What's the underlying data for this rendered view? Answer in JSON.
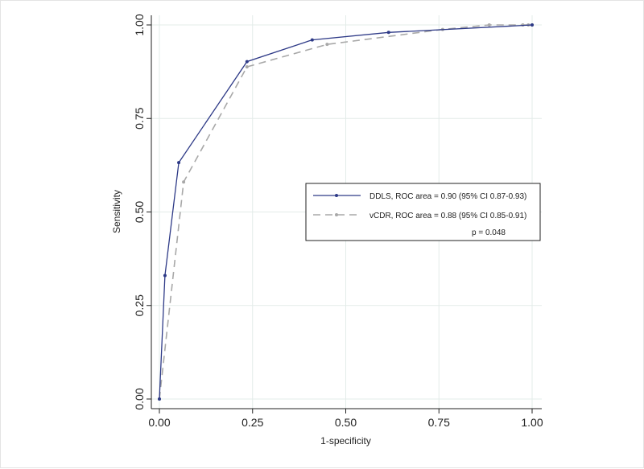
{
  "chart_data": {
    "type": "line",
    "title": "",
    "xlabel": "1-specificity",
    "ylabel": "Sensitivity",
    "xlim": [
      0,
      1
    ],
    "ylim": [
      0,
      1
    ],
    "xticks": [
      "0.00",
      "0.25",
      "0.50",
      "0.75",
      "1.00"
    ],
    "yticks": [
      "0.00",
      "0.25",
      "0.50",
      "0.75",
      "1.00"
    ],
    "grid": true,
    "legend_position": "right",
    "series": [
      {
        "name": "DDLS, ROC area = 0.90 (95% CI 0.87-0.93)",
        "color": "#2e3a87",
        "style": "solid",
        "x": [
          0.0,
          0.015,
          0.052,
          0.235,
          0.41,
          0.615,
          1.0
        ],
        "y": [
          0.0,
          0.33,
          0.632,
          0.902,
          0.96,
          0.98,
          1.0
        ]
      },
      {
        "name": "vCDR, ROC area = 0.88 (95% CI 0.85-0.91)",
        "color": "#a8a8a8",
        "style": "dashed",
        "x": [
          0.0,
          0.065,
          0.235,
          0.45,
          0.76,
          0.885,
          0.975,
          0.99,
          1.0
        ],
        "y": [
          0.0,
          0.58,
          0.888,
          0.948,
          0.988,
          1.0,
          1.0,
          1.0,
          1.0
        ]
      }
    ],
    "annotation": "p = 0.048"
  }
}
